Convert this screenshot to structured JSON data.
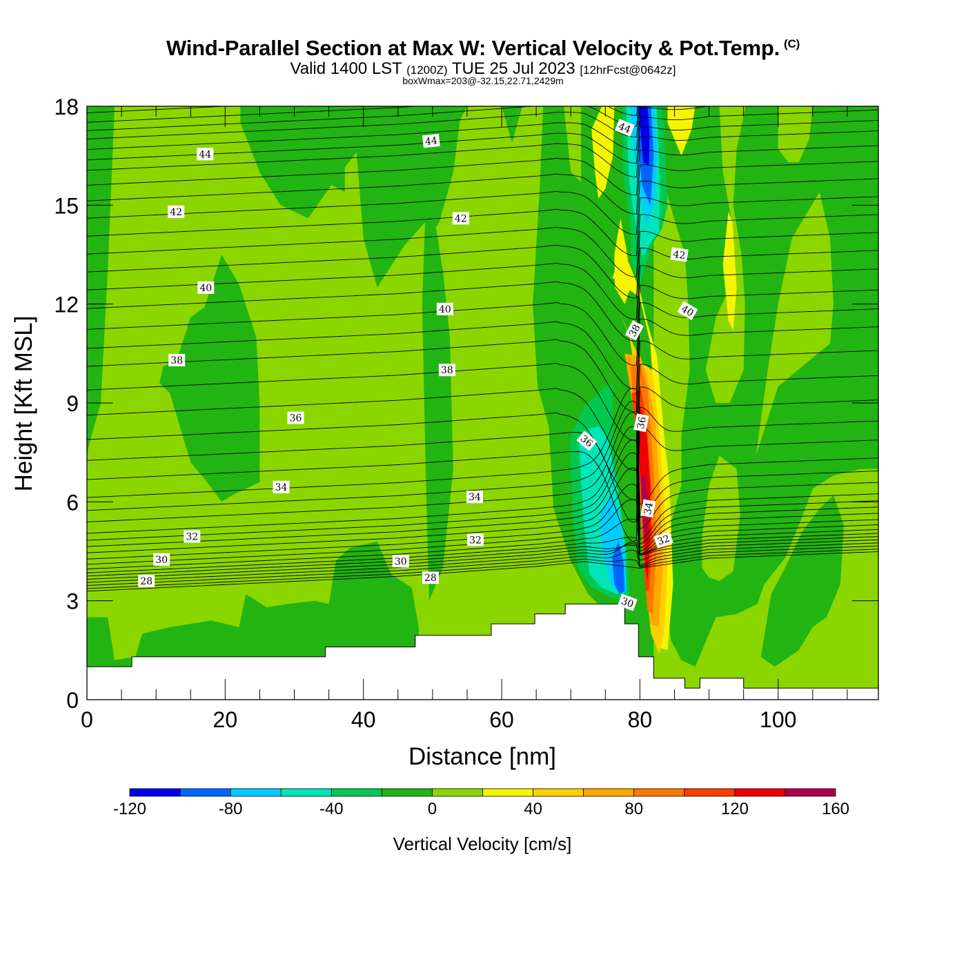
{
  "header": {
    "title": "Wind-Parallel Section at Max W: Vertical Velocity & Pot.Temp.",
    "copyright": "(C)",
    "valid_prefix": "Valid 1400 LST",
    "valid_utc": "(1200Z)",
    "valid_date": "TUE 25 Jul 2023",
    "forecast": "[12hrFcst@0642z]",
    "box_info": "boxWmax=203@-32.15,22.71,2429m"
  },
  "chart_data": {
    "type": "heatmap",
    "title": "Wind-Parallel Section at Max W: Vertical Velocity & Pot.Temp.",
    "xlabel": "Distance [nm]",
    "ylabel": "Height [Kft MSL]",
    "xlim": [
      0,
      114.5
    ],
    "ylim": [
      0,
      18
    ],
    "x_ticks": [
      0,
      20,
      40,
      60,
      80,
      100
    ],
    "y_ticks": [
      0,
      3,
      6,
      9,
      12,
      15,
      18
    ],
    "colorbar": {
      "title": "Vertical Velocity [cm/s]",
      "bounds": [
        -120,
        -100,
        -80,
        -60,
        -40,
        -20,
        0,
        20,
        40,
        60,
        80,
        100,
        120,
        140,
        160
      ],
      "labels": [
        "-120",
        "-80",
        "-40",
        "0",
        "40",
        "80",
        "120",
        "160"
      ],
      "colors": [
        "#0000ee",
        "#0066ff",
        "#00ccff",
        "#00e6b8",
        "#00c850",
        "#22b412",
        "#8cd600",
        "#f5f500",
        "#ffd000",
        "#ffa800",
        "#ff7800",
        "#ff3c00",
        "#ee0000",
        "#b0004c"
      ]
    },
    "terrain_kft": [
      [
        0,
        1.0
      ],
      [
        6.5,
        1.0
      ],
      [
        6.5,
        1.3
      ],
      [
        34.5,
        1.3
      ],
      [
        34.5,
        1.6
      ],
      [
        47.5,
        1.6
      ],
      [
        47.5,
        1.95
      ],
      [
        58.5,
        1.95
      ],
      [
        58.5,
        2.3
      ],
      [
        64.8,
        2.3
      ],
      [
        64.8,
        2.6
      ],
      [
        69.2,
        2.6
      ],
      [
        69.2,
        2.9
      ],
      [
        77.8,
        2.9
      ],
      [
        77.8,
        2.3
      ],
      [
        79.8,
        2.3
      ],
      [
        79.8,
        1.3
      ],
      [
        82.0,
        1.3
      ],
      [
        82.0,
        0.65
      ],
      [
        86.5,
        0.65
      ],
      [
        86.5,
        0.35
      ],
      [
        88.7,
        0.35
      ],
      [
        88.7,
        0.65
      ],
      [
        95.0,
        0.65
      ],
      [
        95.0,
        0.35
      ],
      [
        114.5,
        0.35
      ]
    ],
    "theta_contour_labels": [
      {
        "text": "44",
        "x": 17.1,
        "y": 16.55,
        "rot": 0
      },
      {
        "text": "44",
        "x": 49.8,
        "y": 16.95,
        "rot": -6
      },
      {
        "text": "44",
        "x": 77.8,
        "y": 17.35,
        "rot": 22
      },
      {
        "text": "42",
        "x": 12.9,
        "y": 14.8,
        "rot": 0
      },
      {
        "text": "42",
        "x": 54.1,
        "y": 14.6,
        "rot": 0
      },
      {
        "text": "42",
        "x": 85.7,
        "y": 13.5,
        "rot": 8
      },
      {
        "text": "40",
        "x": 17.2,
        "y": 12.5,
        "rot": 0
      },
      {
        "text": "40",
        "x": 51.8,
        "y": 11.85,
        "rot": 0
      },
      {
        "text": "40",
        "x": 86.9,
        "y": 11.8,
        "rot": 30
      },
      {
        "text": "38",
        "x": 13.0,
        "y": 10.3,
        "rot": 0
      },
      {
        "text": "38",
        "x": 52.1,
        "y": 10.0,
        "rot": 0
      },
      {
        "text": "38",
        "x": 79.2,
        "y": 11.2,
        "rot": -62
      },
      {
        "text": "36",
        "x": 30.2,
        "y": 8.55,
        "rot": 0
      },
      {
        "text": "36",
        "x": 72.3,
        "y": 7.85,
        "rot": 40
      },
      {
        "text": "36",
        "x": 80.2,
        "y": 8.4,
        "rot": -78
      },
      {
        "text": "34",
        "x": 28.1,
        "y": 6.45,
        "rot": 0
      },
      {
        "text": "34",
        "x": 56.1,
        "y": 6.15,
        "rot": 0
      },
      {
        "text": "34",
        "x": 81.2,
        "y": 5.8,
        "rot": -80
      },
      {
        "text": "32",
        "x": 15.2,
        "y": 4.95,
        "rot": 0
      },
      {
        "text": "32",
        "x": 56.2,
        "y": 4.85,
        "rot": 0
      },
      {
        "text": "32",
        "x": 83.4,
        "y": 4.85,
        "rot": -20
      },
      {
        "text": "30",
        "x": 10.8,
        "y": 4.25,
        "rot": 0
      },
      {
        "text": "30",
        "x": 45.4,
        "y": 4.2,
        "rot": 0
      },
      {
        "text": "30",
        "x": 78.2,
        "y": 2.95,
        "rot": 20
      },
      {
        "text": "28",
        "x": 8.6,
        "y": 3.6,
        "rot": 0
      },
      {
        "text": "28",
        "x": 49.7,
        "y": 3.7,
        "rot": 0
      }
    ]
  }
}
